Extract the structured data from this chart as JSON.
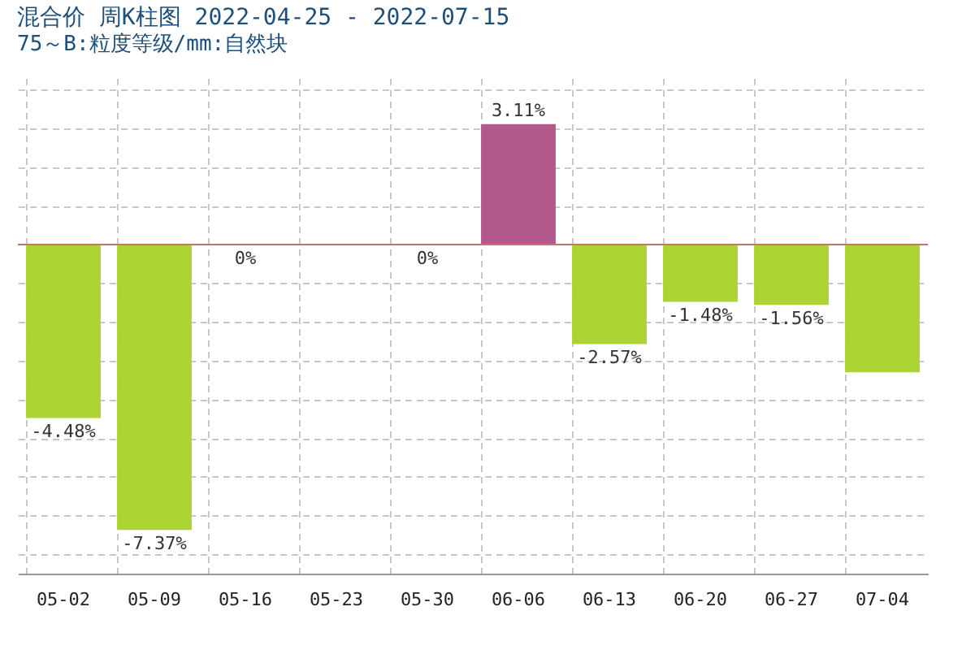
{
  "chart_data": {
    "type": "bar",
    "title": "混合价 周K柱图 2022-04-25 - 2022-07-15",
    "subtitle": "75～B:粒度等级/mm:自然块",
    "categories": [
      "05-02",
      "05-09",
      "05-16",
      "05-23",
      "05-30",
      "06-06",
      "06-13",
      "06-20",
      "06-27",
      "07-04"
    ],
    "values": [
      -4.48,
      -7.37,
      0,
      null,
      0,
      3.11,
      -2.57,
      -1.48,
      -1.56,
      -3.3
    ],
    "value_labels": [
      "-4.48%",
      "-7.37%",
      "0%",
      null,
      "0%",
      "3.11%",
      "-2.57%",
      "-1.48%",
      "-1.56%",
      null
    ],
    "colors": [
      "#abd332",
      "#abd332",
      "#abd332",
      "#abd332",
      "#abd332",
      "#b2588b",
      "#abd332",
      "#abd332",
      "#abd332",
      "#abd332"
    ],
    "ylim": [
      -8.5,
      4.3
    ],
    "ref_lines": [
      {
        "axis": "y",
        "value": 0,
        "color": "#c87070"
      }
    ],
    "grid": true,
    "tick_labels": "x"
  }
}
